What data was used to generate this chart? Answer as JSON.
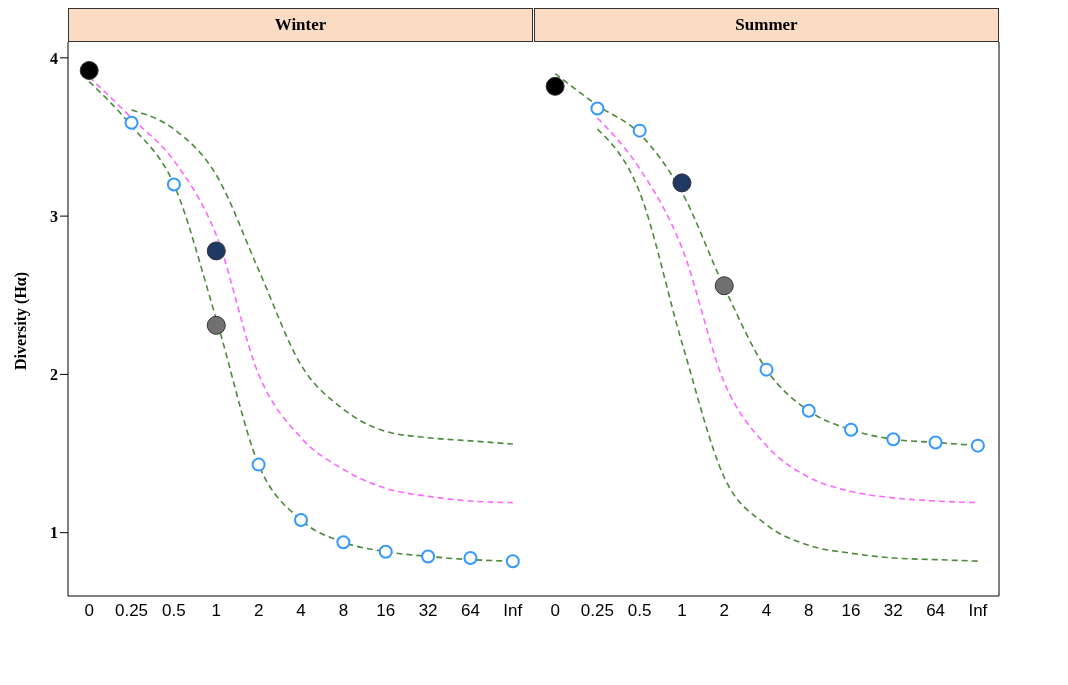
{
  "chart_data": [
    {
      "type": "line",
      "title": "Winter",
      "ylabel": "Diversity (Hα)",
      "categories": [
        "0",
        "0.25",
        "0.5",
        "1",
        "2",
        "4",
        "8",
        "16",
        "32",
        "64",
        "Inf"
      ],
      "ylim": [
        0.6,
        4.1
      ],
      "yticks": [
        1,
        2,
        3,
        4
      ],
      "line_style": "dashed",
      "series": [
        {
          "color": "#4a8a3a",
          "values": [
            null,
            3.67,
            3.55,
            3.26,
            2.66,
            2.06,
            1.78,
            1.64,
            1.6,
            1.58,
            1.56
          ]
        },
        {
          "color": "#ff66ff",
          "values": [
            3.88,
            3.62,
            3.35,
            2.88,
            2.0,
            1.6,
            1.4,
            1.28,
            1.23,
            1.2,
            1.19
          ]
        },
        {
          "color": "#4a8a3a",
          "values": [
            3.85,
            3.57,
            3.2,
            2.35,
            1.43,
            1.08,
            0.94,
            0.88,
            0.85,
            0.83,
            0.82
          ]
        },
        {
          "type": "scatter",
          "marker": "circle",
          "color": "#3399ff",
          "values": [
            null,
            3.59,
            3.2,
            null,
            1.43,
            1.08,
            0.94,
            0.88,
            0.85,
            0.84,
            0.82
          ]
        },
        {
          "type": "scatter",
          "color": "#000000",
          "values": [
            3.92,
            null,
            null,
            null,
            null,
            null,
            null,
            null,
            null,
            null,
            null
          ]
        },
        {
          "type": "scatter",
          "color": "#1f3864",
          "values": [
            null,
            null,
            null,
            2.78,
            null,
            null,
            null,
            null,
            null,
            null,
            null
          ]
        },
        {
          "type": "scatter",
          "color": "#707070",
          "values": [
            null,
            null,
            null,
            2.31,
            null,
            null,
            null,
            null,
            null,
            null,
            null
          ]
        }
      ]
    },
    {
      "type": "line",
      "title": "Summer",
      "categories": [
        "0",
        "0.25",
        "0.5",
        "1",
        "2",
        "4",
        "8",
        "16",
        "32",
        "64",
        "Inf"
      ],
      "ylim": [
        0.6,
        4.1
      ],
      "yticks": [
        1,
        2,
        3,
        4
      ],
      "tick_labels": "x",
      "line_style": "dashed",
      "series": [
        {
          "color": "#4a8a3a",
          "values": [
            3.9,
            3.7,
            3.52,
            3.15,
            2.55,
            2.03,
            1.77,
            1.65,
            1.59,
            1.57,
            1.55
          ]
        },
        {
          "color": "#ff66ff",
          "values": [
            null,
            3.62,
            3.3,
            2.8,
            1.95,
            1.55,
            1.35,
            1.26,
            1.22,
            1.2,
            1.19
          ]
        },
        {
          "color": "#4a8a3a",
          "values": [
            null,
            3.55,
            3.15,
            2.2,
            1.35,
            1.05,
            0.92,
            0.87,
            0.84,
            0.83,
            0.82
          ]
        },
        {
          "type": "scatter",
          "marker": "circle",
          "color": "#3399ff",
          "values": [
            null,
            3.68,
            3.54,
            null,
            null,
            2.03,
            1.77,
            1.65,
            1.59,
            1.57,
            1.55
          ]
        },
        {
          "type": "scatter",
          "color": "#000000",
          "values": [
            3.82,
            null,
            null,
            null,
            null,
            null,
            null,
            null,
            null,
            null,
            null
          ]
        },
        {
          "type": "scatter",
          "color": "#1f3864",
          "values": [
            null,
            null,
            null,
            3.21,
            null,
            null,
            null,
            null,
            null,
            null,
            null
          ]
        },
        {
          "type": "scatter",
          "color": "#707070",
          "values": [
            null,
            null,
            null,
            null,
            2.56,
            null,
            null,
            null,
            null,
            null,
            null
          ]
        }
      ]
    }
  ]
}
